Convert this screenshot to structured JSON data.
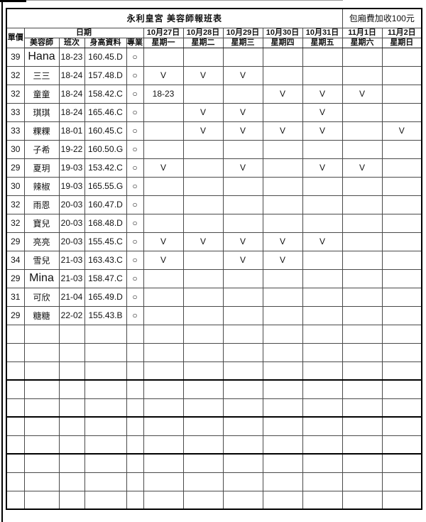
{
  "title": "永利皇宮 美容師報班表",
  "fee_note": "包廂費加收100元",
  "header": {
    "unit_price": "單價",
    "date_group": "日期",
    "beautician": "美容師",
    "shift": "班次",
    "profile": "身高資料",
    "specialty": "專業",
    "days": [
      {
        "date": "10月27日",
        "weekday": "星期一"
      },
      {
        "date": "10月28日",
        "weekday": "星期二"
      },
      {
        "date": "10月29日",
        "weekday": "星期三"
      },
      {
        "date": "10月30日",
        "weekday": "星期四"
      },
      {
        "date": "10月31日",
        "weekday": "星期五"
      },
      {
        "date": "11月1日",
        "weekday": "星期六"
      },
      {
        "date": "11月2日",
        "weekday": "星期日"
      }
    ]
  },
  "rows": [
    {
      "price": "39",
      "name": "Hana",
      "shift": "18-23",
      "profile": "160.45.D",
      "specialty": "○",
      "days": [
        "",
        "",
        "",
        "",
        "",
        "",
        ""
      ]
    },
    {
      "price": "32",
      "name": "三三",
      "shift": "18-24",
      "profile": "157.48.D",
      "specialty": "○",
      "days": [
        "V",
        "V",
        "V",
        "",
        "",
        "",
        ""
      ]
    },
    {
      "price": "32",
      "name": "童童",
      "shift": "18-24",
      "profile": "158.42.C",
      "specialty": "○",
      "days": [
        "18-23",
        "",
        "",
        "V",
        "V",
        "V",
        ""
      ]
    },
    {
      "price": "33",
      "name": "琪琪",
      "shift": "18-24",
      "profile": "165.46.C",
      "specialty": "○",
      "days": [
        "",
        "V",
        "V",
        "",
        "V",
        "",
        ""
      ]
    },
    {
      "price": "33",
      "name": "粿粿",
      "shift": "18-01",
      "profile": "160.45.C",
      "specialty": "○",
      "days": [
        "",
        "V",
        "V",
        "V",
        "V",
        "",
        "V"
      ]
    },
    {
      "price": "30",
      "name": "子希",
      "shift": "19-22",
      "profile": "160.50.G",
      "specialty": "○",
      "days": [
        "",
        "",
        "",
        "",
        "",
        "",
        ""
      ]
    },
    {
      "price": "29",
      "name": "夏玥",
      "shift": "19-03",
      "profile": "153.42.C",
      "specialty": "○",
      "days": [
        "V",
        "",
        "V",
        "",
        "V",
        "V",
        ""
      ]
    },
    {
      "price": "30",
      "name": "辣椒",
      "shift": "19-03",
      "profile": "165.55.G",
      "specialty": "○",
      "days": [
        "",
        "",
        "",
        "",
        "",
        "",
        ""
      ]
    },
    {
      "price": "32",
      "name": "雨恩",
      "shift": "20-03",
      "profile": "160.47.D",
      "specialty": "○",
      "days": [
        "",
        "",
        "",
        "",
        "",
        "",
        ""
      ]
    },
    {
      "price": "32",
      "name": "寶兒",
      "shift": "20-03",
      "profile": "168.48.D",
      "specialty": "○",
      "days": [
        "",
        "",
        "",
        "",
        "",
        "",
        ""
      ]
    },
    {
      "price": "29",
      "name": "亮亮",
      "shift": "20-03",
      "profile": "155.45.C",
      "specialty": "○",
      "days": [
        "V",
        "V",
        "V",
        "V",
        "V",
        "",
        ""
      ]
    },
    {
      "price": "34",
      "name": "雪兒",
      "shift": "21-03",
      "profile": "163.43.C",
      "specialty": "○",
      "days": [
        "V",
        "",
        "V",
        "V",
        "",
        "",
        ""
      ]
    },
    {
      "price": "29",
      "name": "Mina",
      "shift": "21-03",
      "profile": "158.47.C",
      "specialty": "○",
      "days": [
        "",
        "",
        "",
        "",
        "",
        "",
        ""
      ]
    },
    {
      "price": "31",
      "name": "可欣",
      "shift": "21-04",
      "profile": "165.49.D",
      "specialty": "○",
      "days": [
        "",
        "",
        "",
        "",
        "",
        "",
        ""
      ]
    },
    {
      "price": "29",
      "name": "糖糖",
      "shift": "22-02",
      "profile": "155.43.B",
      "specialty": "○",
      "days": [
        "",
        "",
        "",
        "",
        "",
        "",
        ""
      ]
    }
  ],
  "empty_rows": 10
}
